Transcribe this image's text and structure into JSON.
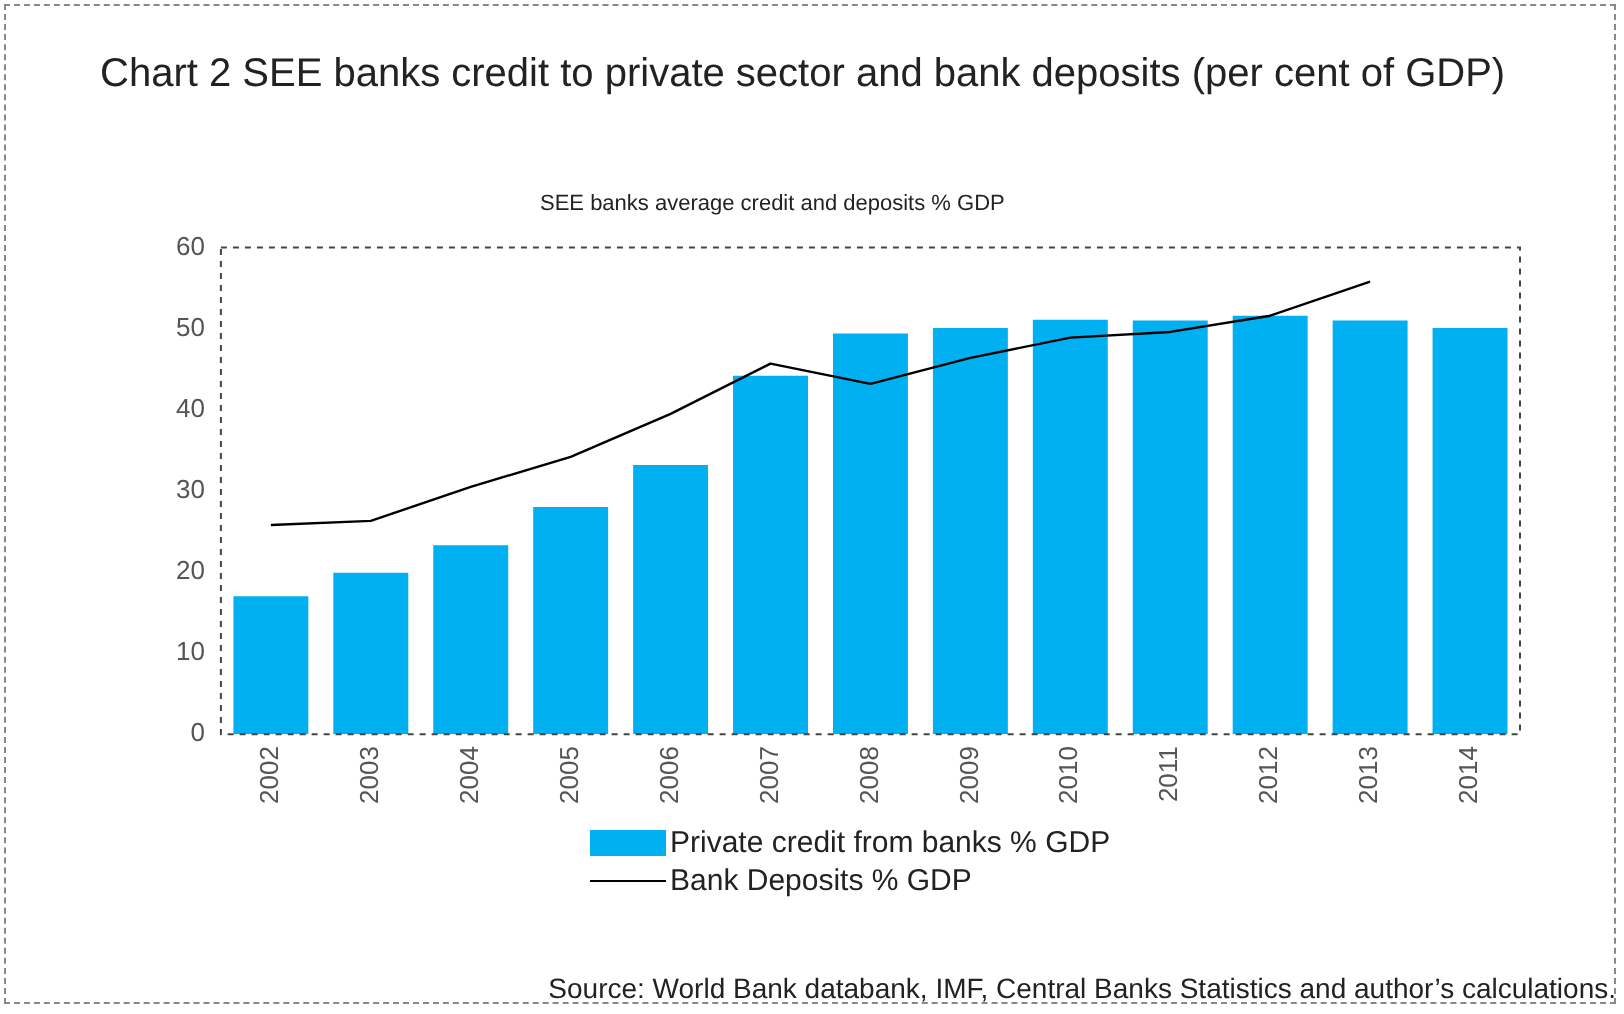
{
  "chart_data": {
    "type": "bar",
    "title": "Chart 2 SEE banks credit to private sector and bank deposits (per cent of GDP)",
    "subtitle": "SEE banks average credit and  deposits % GDP",
    "categories": [
      "2002",
      "2003",
      "2004",
      "2005",
      "2006",
      "2007",
      "2008",
      "2009",
      "2010",
      "2011",
      "2012",
      "2013",
      "2014"
    ],
    "series": [
      {
        "name": "Private credit from banks % GDP",
        "color": "#00b0f0",
        "values": [
          17,
          19.9,
          23.3,
          28,
          33.2,
          44.2,
          49.4,
          50.1,
          51.1,
          51,
          51.6,
          51,
          50.1
        ]
      },
      {
        "name": "Bank Deposits % GDP",
        "type": "line",
        "color": "#000000",
        "values": [
          25.8,
          26.3,
          30.5,
          34.2,
          39.5,
          45.7,
          43.2,
          46.4,
          48.9,
          49.6,
          51.6,
          55.8,
          null
        ]
      }
    ],
    "ylim": [
      0,
      60
    ],
    "yticks": [
      0,
      10,
      20,
      30,
      40,
      50,
      60
    ],
    "grid": false,
    "legend": "bottom",
    "marker": "none",
    "annotations": [
      "Source: World Bank databank, IMF, Central Banks Statistics and author’s calculations."
    ]
  }
}
